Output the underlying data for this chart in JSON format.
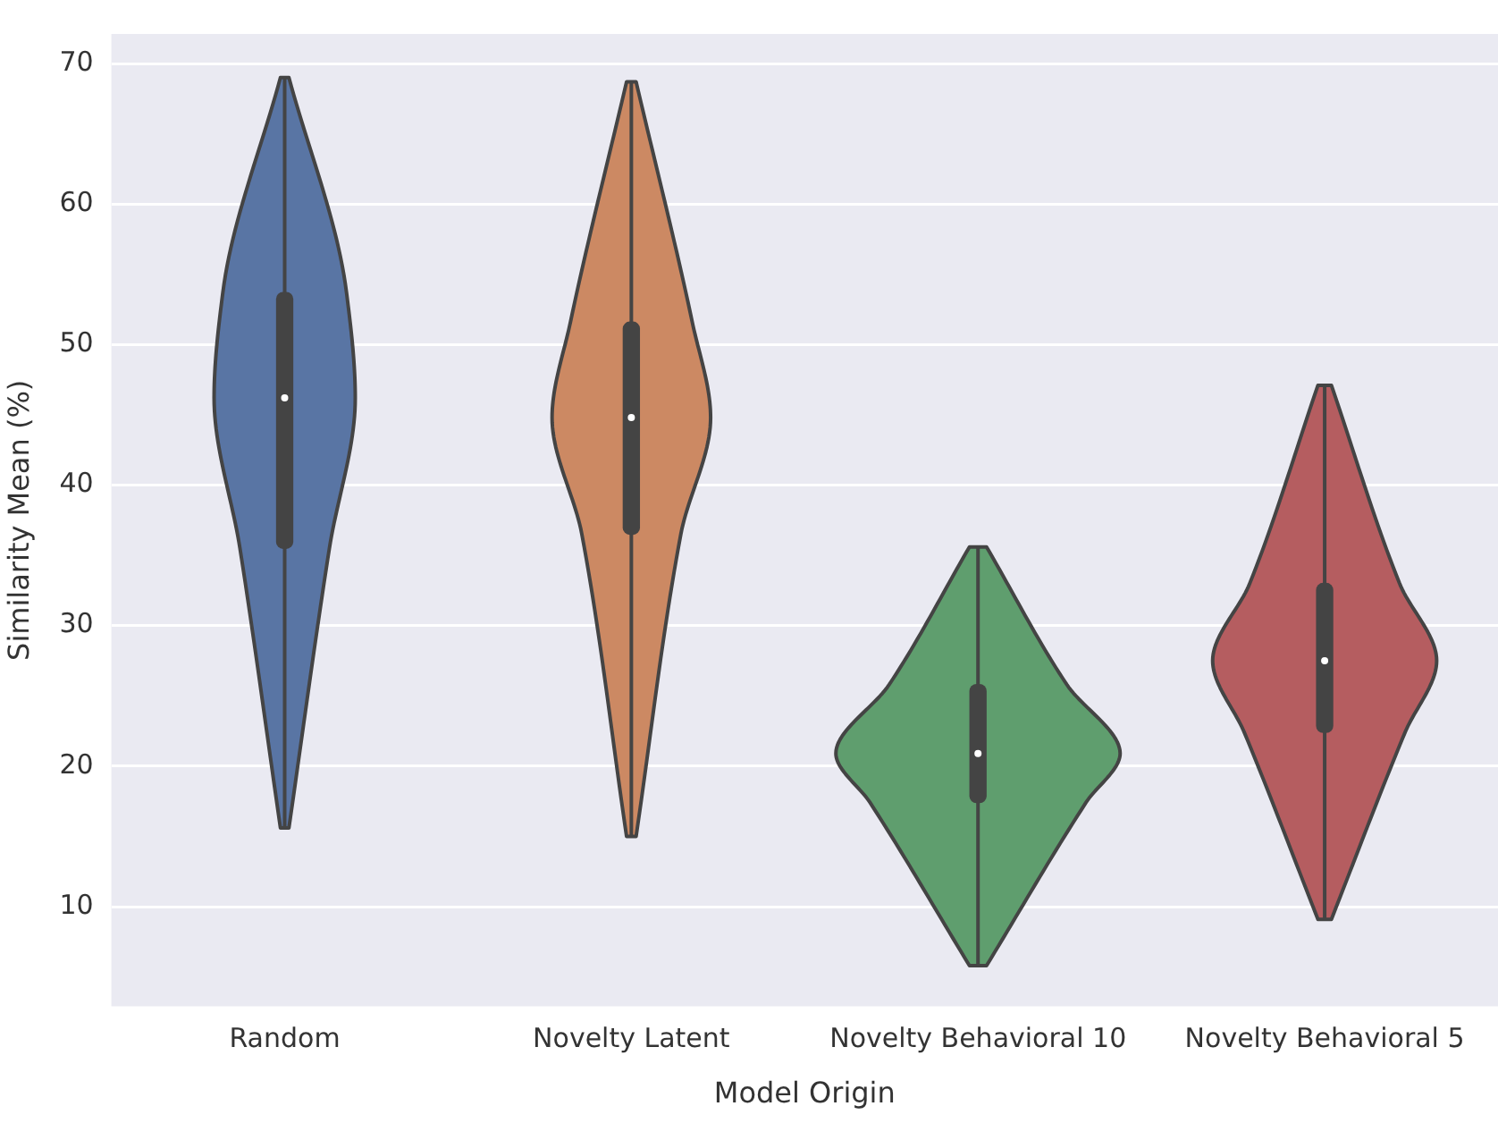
{
  "chart_data": {
    "type": "box",
    "xlabel": "Model Origin",
    "ylabel": "Similarity Mean (%)",
    "categories": [
      "Random",
      "Novelty Latent",
      "Novelty Behavioral 10",
      "Novelty Behavioral 5"
    ],
    "series": [
      {
        "color": "#444444",
        "boxes": [
          {
            "low": 15.6,
            "q1": 35.5,
            "median": 46.2,
            "q3": 53.7,
            "high": 69.0
          },
          {
            "low": 15.0,
            "q1": 36.5,
            "median": 44.8,
            "q3": 51.6,
            "high": 68.7
          },
          {
            "low": 5.8,
            "q1": 17.4,
            "median": 20.9,
            "q3": 25.8,
            "high": 35.6
          },
          {
            "low": 9.1,
            "q1": 22.4,
            "median": 27.5,
            "q3": 33.0,
            "high": 47.1
          }
        ]
      }
    ],
    "ylim": [
      2.9,
      72.1
    ],
    "yticks": [
      10,
      20,
      30,
      40,
      50,
      60,
      70
    ],
    "grid": "y"
  }
}
